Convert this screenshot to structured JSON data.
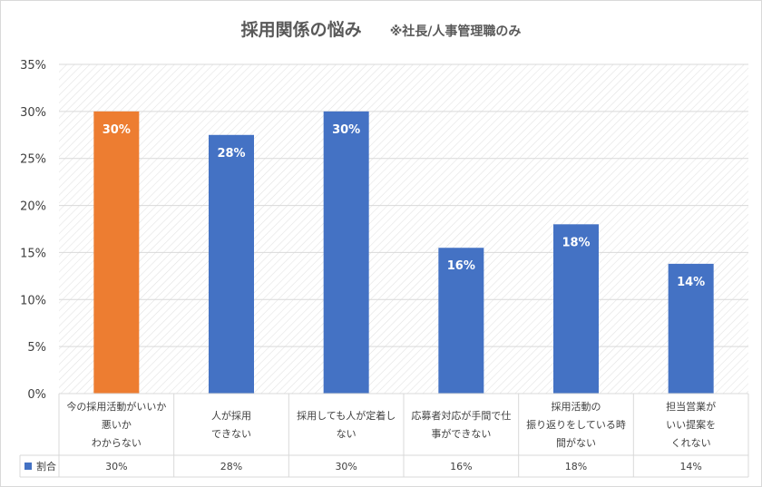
{
  "chart_data": {
    "type": "bar",
    "title": "採用関係の悩み",
    "subtitle": "※社長/人事管理職のみ",
    "categories": [
      [
        "今の採用活動がいいか",
        "悪いか",
        "わからない"
      ],
      [
        "人が採用",
        "できない"
      ],
      [
        "採用しても人が定着し",
        "ない"
      ],
      [
        "応募者対応が手間で仕",
        "事ができない"
      ],
      [
        "採用活動の",
        "振り返りをしている時",
        "間がない"
      ],
      [
        "担当営業が",
        "いい提案を",
        "くれない"
      ]
    ],
    "series": [
      {
        "name": "割合",
        "values": [
          30,
          27.5,
          30,
          15.5,
          18,
          13.8
        ],
        "labels": [
          "30%",
          "28%",
          "30%",
          "16%",
          "18%",
          "14%"
        ]
      }
    ],
    "table_values": [
      "30%",
      "28%",
      "30%",
      "16%",
      "18%",
      "14%"
    ],
    "y_ticks": [
      "0%",
      "5%",
      "10%",
      "15%",
      "20%",
      "25%",
      "30%",
      "35%"
    ],
    "ylim": [
      0,
      35
    ],
    "y_step": 5,
    "highlight_index": 0,
    "colors": {
      "bar": "#4472c4",
      "highlight": "#ed7d31",
      "label": "#ffffff",
      "grid": "#d9d9d9",
      "hatch": "#e3e3e3",
      "text": "#404040",
      "title": "#595959"
    },
    "legend": "data-table"
  }
}
